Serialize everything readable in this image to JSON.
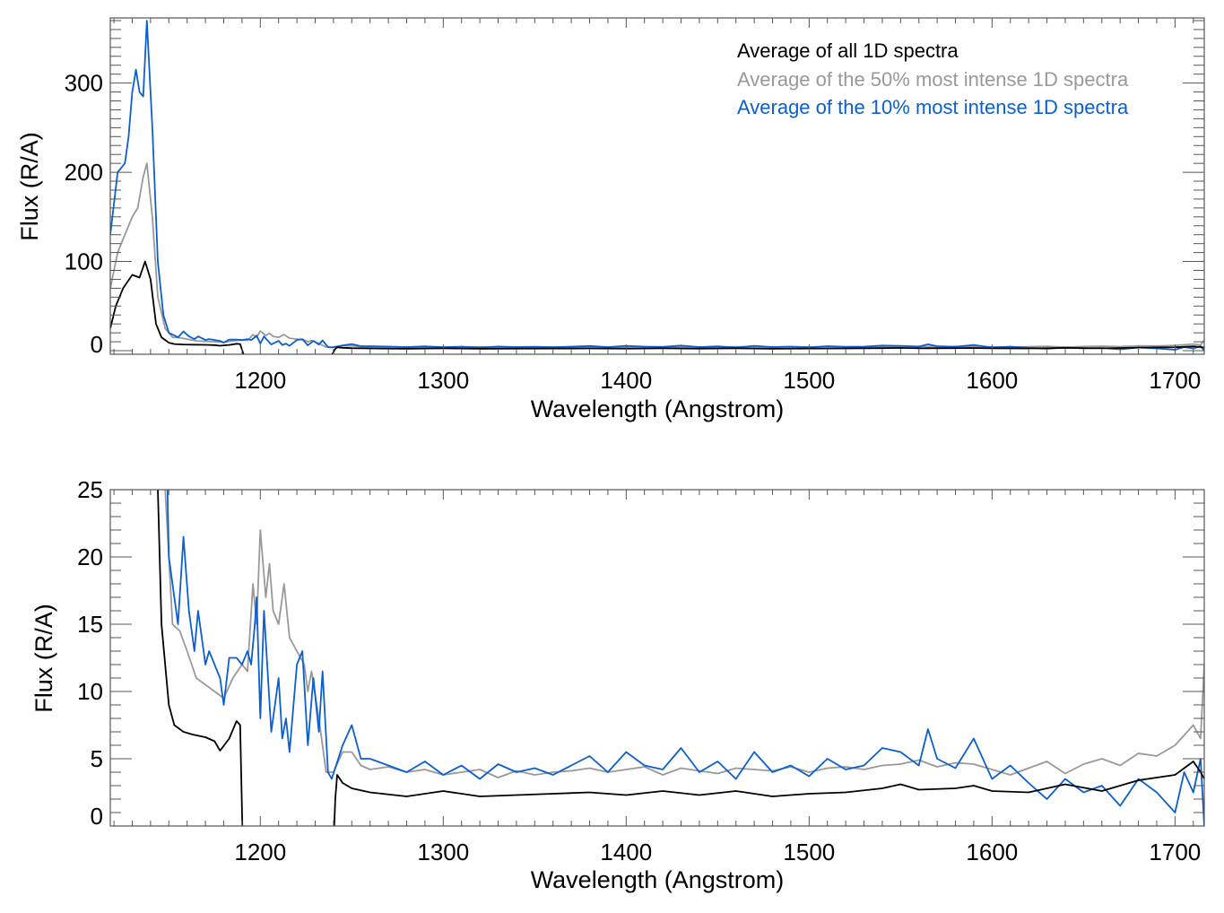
{
  "chart_data": {
    "type": "line",
    "xlabel": "Wavelength (Angstrom)",
    "ylabel": "Flux (R/A)",
    "xlim": [
      1118,
      1716
    ],
    "xticks": [
      1200,
      1300,
      1400,
      1500,
      1600,
      1700
    ],
    "legend_placement": "top-right of upper panel",
    "panels": [
      {
        "ylim": [
          -4,
          373
        ],
        "yticks": [
          0,
          100,
          200,
          300
        ],
        "minor_y": 10,
        "legend": true
      },
      {
        "ylim": [
          0,
          25
        ],
        "yticks": [
          0,
          5,
          10,
          15,
          20,
          25
        ],
        "minor_y": 1,
        "legend": false
      }
    ],
    "series": [
      {
        "name": "Average of all 1D spectra",
        "color": "#000000",
        "x": [
          1118,
          1121,
          1125,
          1130,
          1134,
          1137,
          1140,
          1143,
          1146,
          1150,
          1153,
          1158,
          1163,
          1170,
          1175,
          1178,
          1183,
          1187,
          1189,
          1191,
          1239,
          1241,
          1242,
          1245,
          1250,
          1260,
          1280,
          1300,
          1320,
          1340,
          1360,
          1380,
          1400,
          1420,
          1440,
          1460,
          1480,
          1500,
          1520,
          1540,
          1550,
          1560,
          1580,
          1590,
          1600,
          1620,
          1640,
          1660,
          1680,
          1700,
          1710,
          1714,
          1716
        ],
        "y": [
          25,
          50,
          70,
          85,
          82,
          100,
          80,
          30,
          15,
          9,
          7.5,
          7,
          6.8,
          6.6,
          6.3,
          5.6,
          6.5,
          7.8,
          7.5,
          -5,
          -5,
          2,
          3.8,
          3.2,
          2.8,
          2.5,
          2.2,
          2.6,
          2.2,
          2.3,
          2.4,
          2.5,
          2.3,
          2.6,
          2.3,
          2.6,
          2.2,
          2.4,
          2.5,
          2.8,
          3.1,
          2.7,
          2.8,
          3.0,
          2.6,
          2.5,
          3.1,
          2.6,
          3.4,
          3.8,
          4.8,
          4.0,
          3.5
        ]
      },
      {
        "name": "Average of the 50% most intense 1D spectra",
        "color": "#999999",
        "x": [
          1118,
          1122,
          1126,
          1130,
          1133,
          1136,
          1138,
          1141,
          1144,
          1148,
          1152,
          1156,
          1160,
          1165,
          1170,
          1175,
          1180,
          1185,
          1190,
          1193,
          1196,
          1198,
          1200,
          1203,
          1205,
          1207,
          1210,
          1213,
          1216,
          1220,
          1224,
          1226,
          1228,
          1232,
          1236,
          1240,
          1245,
          1250,
          1255,
          1260,
          1270,
          1280,
          1290,
          1300,
          1310,
          1320,
          1330,
          1340,
          1350,
          1360,
          1370,
          1380,
          1390,
          1400,
          1410,
          1420,
          1430,
          1440,
          1450,
          1460,
          1470,
          1480,
          1490,
          1500,
          1510,
          1520,
          1530,
          1540,
          1550,
          1560,
          1570,
          1580,
          1590,
          1600,
          1610,
          1620,
          1630,
          1640,
          1650,
          1660,
          1670,
          1680,
          1690,
          1700,
          1710,
          1714,
          1716
        ],
        "y": [
          70,
          110,
          130,
          150,
          160,
          195,
          210,
          150,
          60,
          25,
          15,
          14.5,
          13,
          11,
          10.5,
          10,
          9.5,
          11,
          12,
          11.5,
          18,
          15,
          22,
          17,
          19.5,
          16,
          15,
          18,
          14,
          13,
          12,
          10,
          11.5,
          8,
          4,
          4,
          5.5,
          5.5,
          4.5,
          4.2,
          4.4,
          4,
          4.2,
          3.8,
          4,
          4.2,
          3.6,
          4.1,
          3.8,
          4,
          4.1,
          4.3,
          4,
          4.2,
          4.4,
          3.8,
          4.3,
          4.1,
          3.9,
          4.3,
          4.2,
          4.1,
          4.4,
          4,
          4.3,
          4.4,
          4.2,
          4.5,
          4.6,
          4.9,
          4.4,
          4.7,
          4.6,
          4.2,
          3.8,
          4.3,
          4.8,
          3.9,
          4.6,
          5,
          4.5,
          5.4,
          5.2,
          6,
          7.5,
          6.5,
          12
        ]
      },
      {
        "name": "Average of the 10% most intense 1D spectra",
        "color": "#0b5fce",
        "x": [
          1118,
          1122,
          1126,
          1128,
          1130,
          1132,
          1134,
          1136,
          1138,
          1141,
          1144,
          1147,
          1150,
          1155,
          1158,
          1161,
          1164,
          1166,
          1170,
          1172,
          1175,
          1178,
          1180,
          1183,
          1187,
          1190,
          1193,
          1195,
          1197,
          1198,
          1200,
          1202,
          1206,
          1208,
          1210,
          1212,
          1214,
          1216,
          1220,
          1223,
          1226,
          1229,
          1232,
          1234,
          1237,
          1239,
          1245,
          1250,
          1255,
          1260,
          1270,
          1280,
          1290,
          1300,
          1310,
          1320,
          1330,
          1340,
          1350,
          1360,
          1370,
          1380,
          1390,
          1400,
          1410,
          1420,
          1430,
          1440,
          1450,
          1460,
          1470,
          1480,
          1490,
          1500,
          1510,
          1520,
          1530,
          1540,
          1550,
          1560,
          1565,
          1570,
          1580,
          1590,
          1600,
          1610,
          1620,
          1630,
          1640,
          1650,
          1660,
          1670,
          1680,
          1690,
          1700,
          1705,
          1710,
          1714,
          1716
        ],
        "y": [
          130,
          200,
          210,
          240,
          290,
          315,
          290,
          285,
          370,
          250,
          100,
          40,
          20,
          15,
          21.5,
          16,
          13,
          16,
          12,
          13,
          12,
          11,
          9,
          12.5,
          12.5,
          12,
          13,
          12,
          15,
          17,
          8,
          16,
          7,
          9,
          11,
          6.5,
          8,
          5.5,
          12,
          13,
          6,
          11,
          7,
          11.5,
          4,
          3.5,
          6,
          7.5,
          5,
          5,
          4.5,
          4,
          4.8,
          3.8,
          4.5,
          3.5,
          4.6,
          4,
          4.3,
          3.8,
          4.5,
          5.2,
          4,
          5.5,
          4.5,
          4.2,
          5.8,
          4,
          4.8,
          3.5,
          5.5,
          4,
          4.5,
          3.7,
          5,
          4.2,
          4.5,
          5.8,
          5.5,
          4.5,
          7.2,
          5,
          4.3,
          6.5,
          3.5,
          4.5,
          3.2,
          2,
          3.5,
          2.5,
          3,
          1.5,
          3.5,
          2.5,
          1,
          4,
          2.5,
          5,
          0
        ]
      }
    ]
  }
}
